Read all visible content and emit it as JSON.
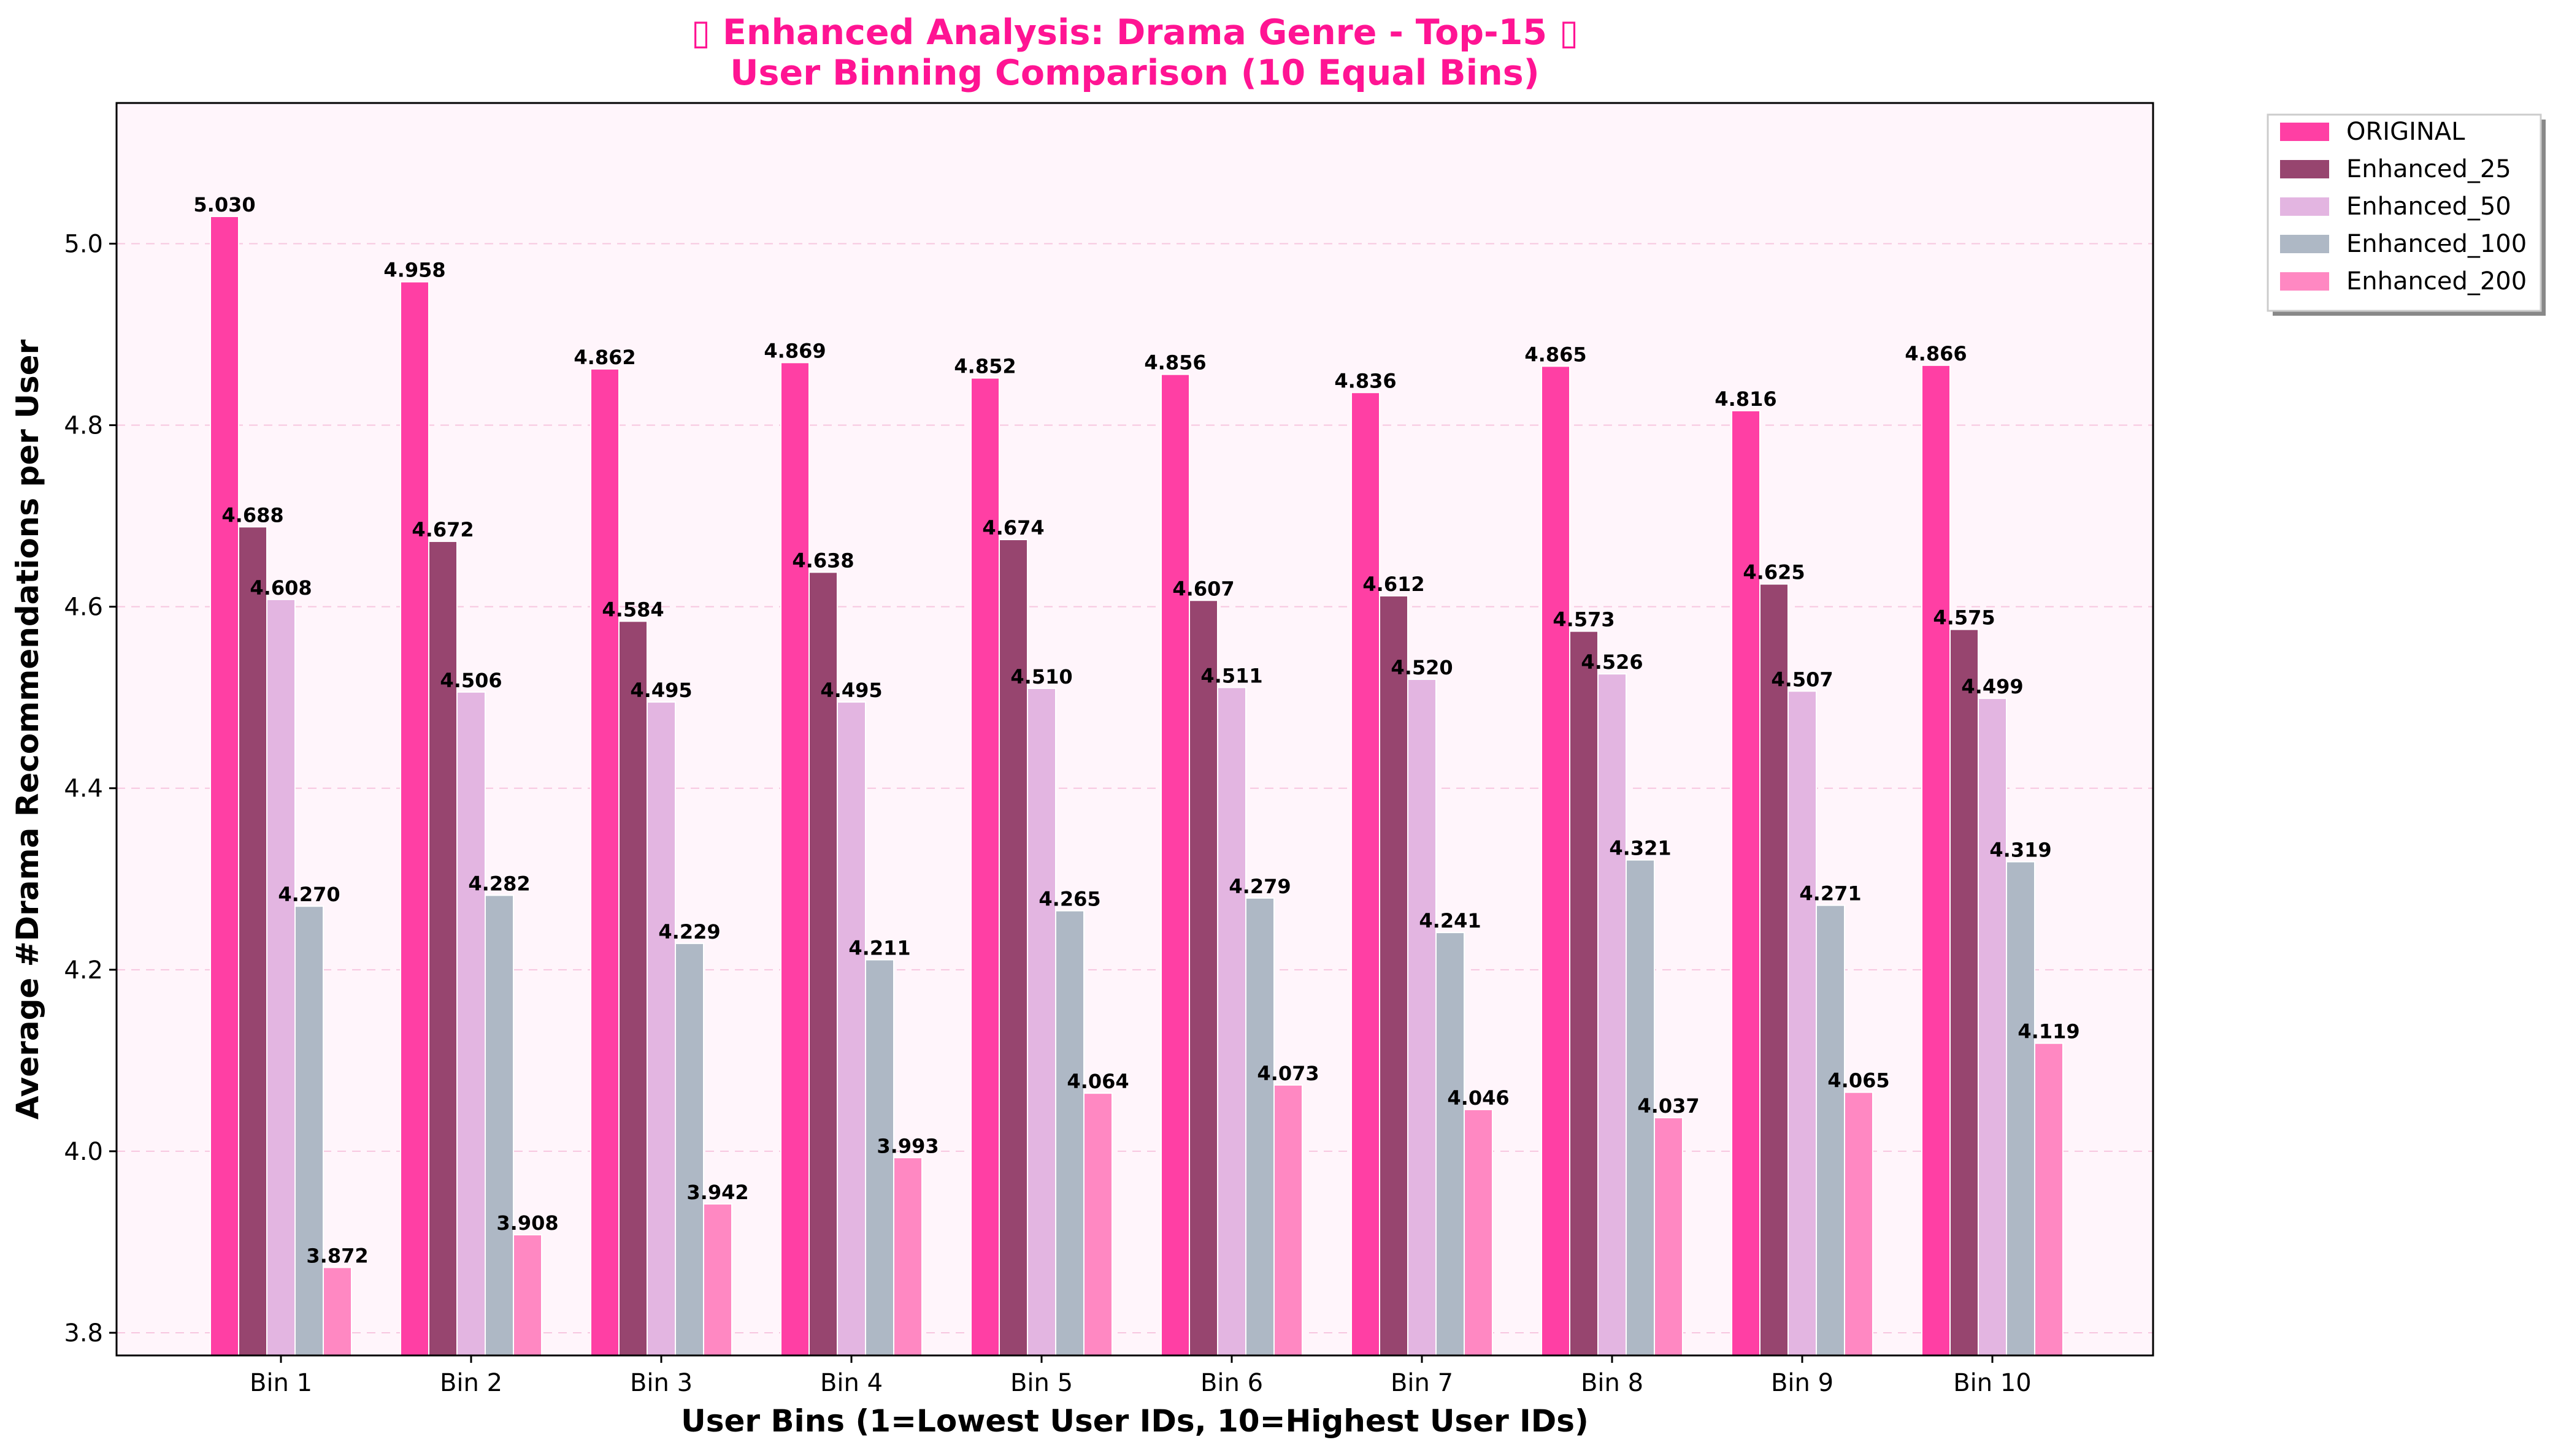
{
  "chart_data": {
    "type": "bar",
    "title_line1": "▯ Enhanced Analysis: Drama Genre - Top-15 ▯",
    "title_line2": "User Binning Comparison (10 Equal Bins)",
    "xlabel": "User Bins (1=Lowest User IDs, 10=Highest User IDs)",
    "ylabel": "Average #Drama Recommendations per User",
    "ylim": [
      3.775,
      5.155
    ],
    "yticks": [
      "3.8",
      "4.0",
      "4.2",
      "4.4",
      "4.6",
      "4.8",
      "5.0"
    ],
    "grid": "horizontal dashed",
    "legend_position": "upper right, outside plot",
    "categories": [
      "Bin 1",
      "Bin 2",
      "Bin 3",
      "Bin 4",
      "Bin 5",
      "Bin 6",
      "Bin 7",
      "Bin 8",
      "Bin 9",
      "Bin 10"
    ],
    "series": [
      {
        "name": "ORIGINAL",
        "color": "#ff3fa4",
        "values": [
          5.03,
          4.958,
          4.862,
          4.869,
          4.852,
          4.856,
          4.836,
          4.865,
          4.816,
          4.866
        ],
        "labels": [
          "5.030",
          "4.958",
          "4.862",
          "4.869",
          "4.852",
          "4.856",
          "4.836",
          "4.865",
          "4.816",
          "4.866"
        ]
      },
      {
        "name": "Enhanced_25",
        "color": "#97456f",
        "values": [
          4.688,
          4.672,
          4.584,
          4.638,
          4.674,
          4.607,
          4.612,
          4.573,
          4.625,
          4.575
        ],
        "labels": [
          "4.688",
          "4.672",
          "4.584",
          "4.638",
          "4.674",
          "4.607",
          "4.612",
          "4.573",
          "4.625",
          "4.575"
        ]
      },
      {
        "name": "Enhanced_50",
        "color": "#e3b5e1",
        "values": [
          4.608,
          4.506,
          4.495,
          4.495,
          4.51,
          4.511,
          4.52,
          4.526,
          4.507,
          4.499
        ],
        "labels": [
          "4.608",
          "4.506",
          "4.495",
          "4.495",
          "4.510",
          "4.511",
          "4.520",
          "4.526",
          "4.507",
          "4.499"
        ]
      },
      {
        "name": "Enhanced_100",
        "color": "#aeb8c5",
        "values": [
          4.27,
          4.282,
          4.229,
          4.211,
          4.265,
          4.279,
          4.241,
          4.321,
          4.271,
          4.319
        ],
        "labels": [
          "4.270",
          "4.282",
          "4.229",
          "4.211",
          "4.265",
          "4.279",
          "4.241",
          "4.321",
          "4.271",
          "4.319"
        ]
      },
      {
        "name": "Enhanced_200",
        "color": "#ff88c2",
        "values": [
          3.872,
          3.908,
          3.942,
          3.993,
          4.064,
          4.073,
          4.046,
          4.037,
          4.065,
          4.119
        ],
        "labels": [
          "3.872",
          "3.908",
          "3.942",
          "3.993",
          "4.064",
          "4.073",
          "4.046",
          "4.037",
          "4.065",
          "4.119"
        ]
      }
    ]
  },
  "colors": {
    "title": "#ff1493",
    "plot_background": "#fff5fb",
    "grid": "#f7c6df"
  }
}
